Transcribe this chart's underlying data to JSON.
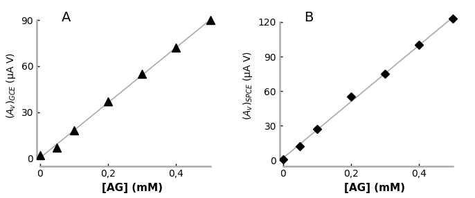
{
  "panel_A": {
    "label": "A",
    "x": [
      0.0,
      0.05,
      0.1,
      0.2,
      0.3,
      0.4,
      0.5
    ],
    "y": [
      2.0,
      7.0,
      18.0,
      37.0,
      55.0,
      72.0,
      90.0
    ],
    "marker": "^",
    "markersize": 8,
    "ylabel": "$(A_v)_{GCE}$ (μA V)",
    "xlabel": "[AG] (mM)",
    "ylim": [
      -5,
      100
    ],
    "yticks": [
      0,
      30,
      60,
      90
    ],
    "ytick_labels": [
      "0",
      "30",
      "60",
      "90"
    ],
    "xlim": [
      -0.01,
      0.55
    ],
    "xticks": [
      0.0,
      0.2,
      0.4
    ],
    "xtick_labels": [
      "0",
      "0,2",
      "0,4"
    ]
  },
  "panel_B": {
    "label": "B",
    "x": [
      0.0,
      0.05,
      0.1,
      0.2,
      0.3,
      0.4,
      0.5
    ],
    "y": [
      1.0,
      12.0,
      27.0,
      55.0,
      75.0,
      100.0,
      123.0
    ],
    "marker": "D",
    "markersize": 6,
    "ylabel": "$(A_v)_{SPCE}$ (μA V)",
    "xlabel": "[AG] (mM)",
    "ylim": [
      -5,
      135
    ],
    "yticks": [
      0,
      30,
      60,
      90,
      120
    ],
    "ytick_labels": [
      "0",
      "30",
      "60",
      "90",
      "120"
    ],
    "xlim": [
      -0.01,
      0.55
    ],
    "xticks": [
      0.0,
      0.2,
      0.4
    ],
    "xtick_labels": [
      "0",
      "0,2",
      "0,4"
    ]
  },
  "line_color": "#aaaaaa",
  "marker_color": "black",
  "spine_color": "#aaaaaa",
  "spine_linewidth": 1.8,
  "background_color": "#ffffff",
  "tick_fontsize": 10,
  "label_fontsize": 11,
  "panel_label_fontsize": 14
}
